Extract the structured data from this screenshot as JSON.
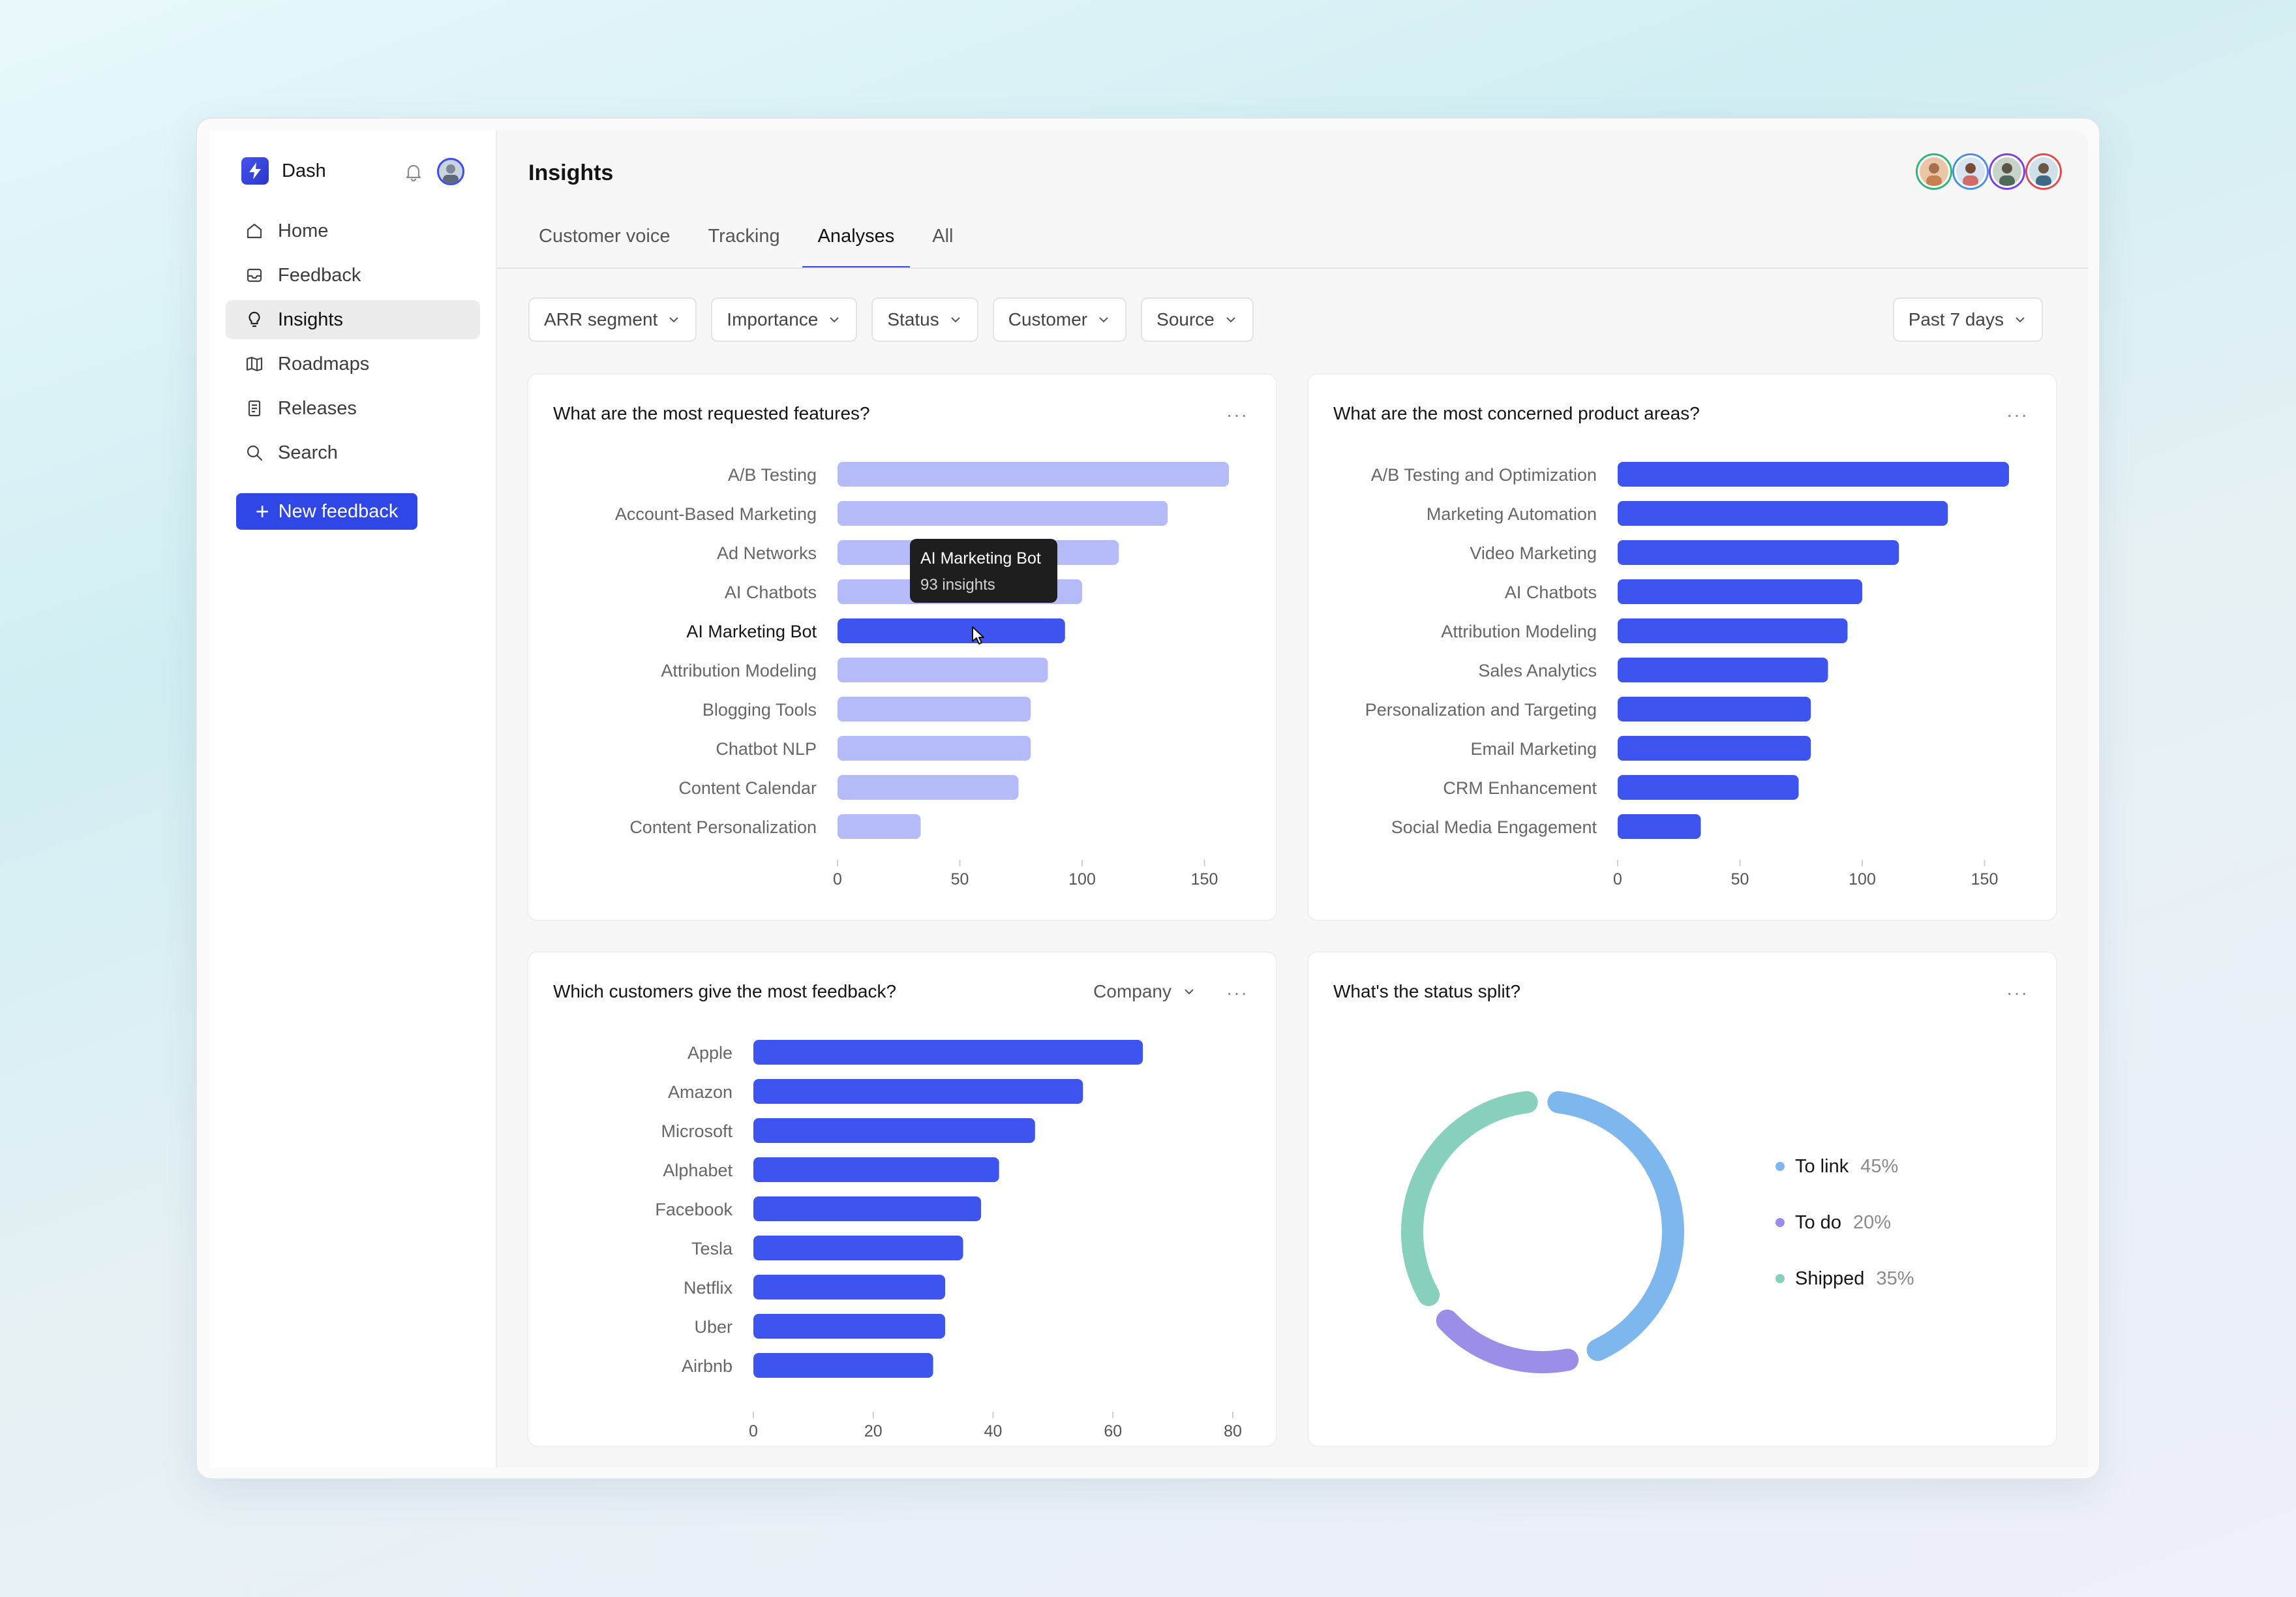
{
  "sidebar": {
    "brand": "Dash",
    "items": [
      {
        "label": "Home",
        "icon": "home-icon"
      },
      {
        "label": "Feedback",
        "icon": "inbox-icon"
      },
      {
        "label": "Insights",
        "icon": "lightbulb-icon",
        "active": true
      },
      {
        "label": "Roadmaps",
        "icon": "map-icon"
      },
      {
        "label": "Releases",
        "icon": "document-icon"
      },
      {
        "label": "Search",
        "icon": "search-icon"
      }
    ],
    "new_button": "New feedback"
  },
  "header": {
    "title": "Insights",
    "tabs": [
      {
        "label": "Customer voice"
      },
      {
        "label": "Tracking"
      },
      {
        "label": "Analyses",
        "active": true
      },
      {
        "label": "All"
      }
    ]
  },
  "filters": [
    "ARR segment",
    "Importance",
    "Status",
    "Customer",
    "Source"
  ],
  "period": "Past 7 days",
  "colors": {
    "accent": "#3146e6",
    "bar": "#3d55ee",
    "bar_dim": "#b4bbf8",
    "to_link": "#7eb6ee",
    "to_do": "#9b8ee8",
    "shipped": "#86d0bd"
  },
  "cards": {
    "features": {
      "title": "What are the most requested features?",
      "more": "···"
    },
    "areas": {
      "title": "What are the most concerned product areas?",
      "more": "···"
    },
    "customers": {
      "title": "Which customers give the most feedback?",
      "select": "Company",
      "more": "···"
    },
    "status": {
      "title": "What's the status split?",
      "more": "···"
    }
  },
  "tooltip": {
    "title": "AI Marketing Bot",
    "value": "93 insights"
  },
  "chart_data": [
    {
      "type": "bar",
      "orientation": "horizontal",
      "categories": [
        "A/B Testing",
        "Account-Based Marketing",
        "Ad Networks",
        "AI Chatbots",
        "AI Marketing Bot",
        "Attribution Modeling",
        "Blogging Tools",
        "Chatbot NLP",
        "Content Calendar",
        "Content Personalization"
      ],
      "values": [
        160,
        135,
        115,
        100,
        93,
        86,
        79,
        79,
        74,
        34
      ],
      "highlighted": "AI Marketing Bot",
      "xticks": [
        0,
        50,
        100,
        150
      ],
      "xlim": [
        0,
        160
      ]
    },
    {
      "type": "bar",
      "orientation": "horizontal",
      "categories": [
        "A/B Testing and Optimization",
        "Marketing Automation",
        "Video Marketing",
        "AI Chatbots",
        "Attribution Modeling",
        "Sales Analytics",
        "Personalization and Targeting",
        "Email Marketing",
        "CRM Enhancement",
        "Social Media Engagement"
      ],
      "values": [
        160,
        135,
        115,
        100,
        94,
        86,
        79,
        79,
        74,
        34
      ],
      "xticks": [
        0,
        50,
        100,
        150
      ],
      "xlim": [
        0,
        160
      ]
    },
    {
      "type": "bar",
      "orientation": "horizontal",
      "categories": [
        "Apple",
        "Amazon",
        "Microsoft",
        "Alphabet",
        "Facebook",
        "Tesla",
        "Netflix",
        "Uber",
        "Airbnb"
      ],
      "values": [
        65,
        55,
        47,
        41,
        38,
        35,
        32,
        32,
        30
      ],
      "xticks": [
        0,
        20,
        40,
        60,
        80
      ],
      "xlim": [
        0,
        80
      ]
    },
    {
      "type": "pie",
      "style": "donut",
      "labels": [
        "To link",
        "To do",
        "Shipped"
      ],
      "values": [
        45,
        20,
        35
      ],
      "display": [
        "45%",
        "20%",
        "35%"
      ]
    }
  ]
}
